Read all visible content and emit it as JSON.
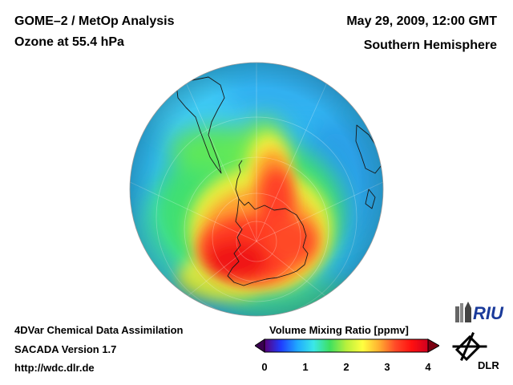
{
  "header": {
    "title_line1": "GOME–2 / MetOp Analysis",
    "title_line2": "Ozone at 55.4 hPa",
    "date": "May 29, 2009, 12:00 GMT",
    "hemisphere": "Southern Hemisphere"
  },
  "footer": {
    "line1": "4DVar Chemical Data Assimilation",
    "line2": "SACADA Version 1.7",
    "line3": "http://wdc.dlr.de"
  },
  "legend": {
    "title": "Volume Mixing Ratio [ppmv]",
    "ticks": [
      "0",
      "1",
      "2",
      "3",
      "4"
    ],
    "range": [
      0,
      4
    ],
    "colors": [
      "#5a007a",
      "#1f3cff",
      "#1fa8ff",
      "#3be8e8",
      "#3ee060",
      "#b8f03c",
      "#ffff40",
      "#ffb030",
      "#ff4a28",
      "#ff1010",
      "#d00020"
    ],
    "under_color": "#3a0050",
    "over_color": "#7a0010"
  },
  "logos": {
    "riu": "RIU",
    "dlr": "DLR"
  },
  "map": {
    "projection": "orthographic",
    "center": "South Pole",
    "ocean_base_color": "#2fb8f0",
    "coastline_color": "#1a1a1a"
  }
}
